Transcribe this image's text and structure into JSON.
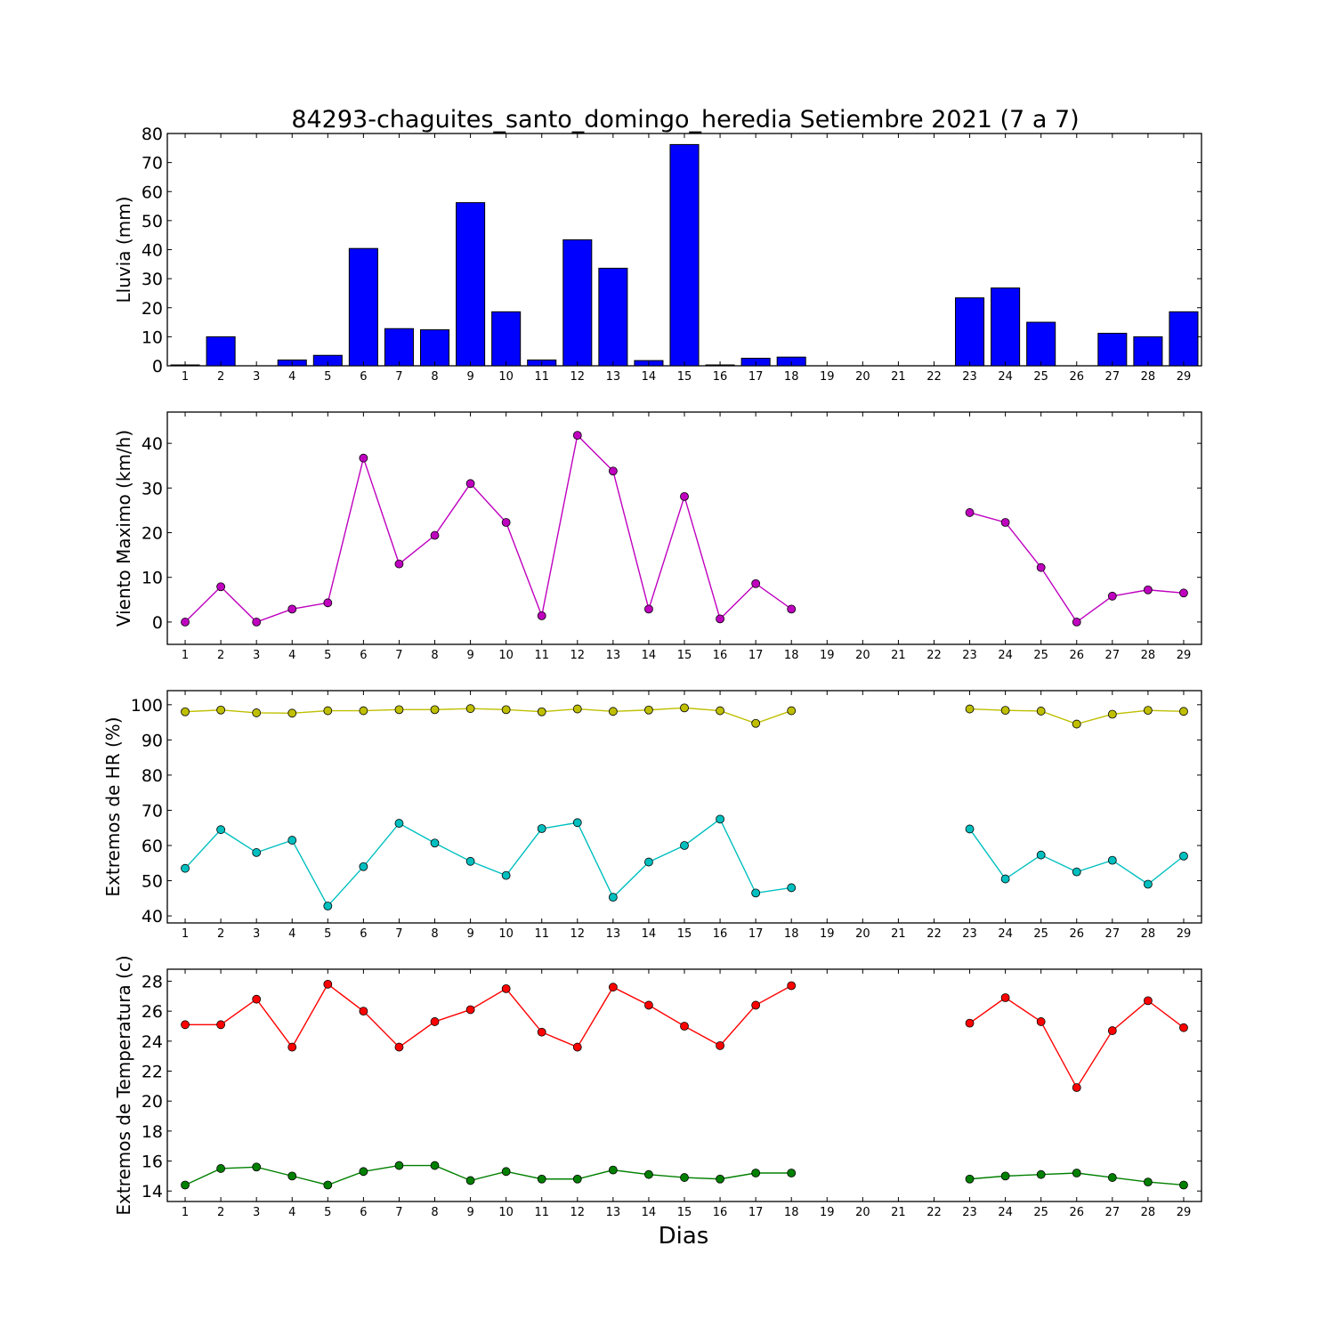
{
  "figure": {
    "title": "84293-chaguites_santo_domingo_heredia Setiembre 2021  (7 a 7)",
    "xlabel": "Dias"
  },
  "chart_data": [
    {
      "type": "bar",
      "ylabel": "Lluvia (mm)",
      "ylim": [
        0,
        80
      ],
      "yticks": [
        0,
        10,
        20,
        30,
        40,
        50,
        60,
        70,
        80
      ],
      "xlim": [
        0.5,
        29.5
      ],
      "x": [
        1,
        2,
        3,
        4,
        5,
        6,
        7,
        8,
        9,
        10,
        11,
        12,
        13,
        14,
        15,
        16,
        17,
        18,
        19,
        20,
        21,
        22,
        23,
        24,
        25,
        26,
        27,
        28,
        29
      ],
      "values": [
        0.3,
        10.0,
        0.0,
        2.0,
        3.6,
        40.4,
        12.8,
        12.4,
        56.2,
        18.6,
        2.0,
        43.4,
        33.6,
        1.8,
        76.2,
        0.3,
        2.6,
        3.0,
        0,
        0,
        0,
        0,
        23.4,
        26.8,
        15.0,
        0.0,
        11.2,
        10.0,
        18.6
      ],
      "color": "#0000ff",
      "grid": false
    },
    {
      "type": "line",
      "ylabel": "Viento Maximo (km/h)",
      "ylim": [
        -5,
        47
      ],
      "yticks": [
        0,
        10,
        20,
        30,
        40
      ],
      "xlim": [
        0.5,
        29.5
      ],
      "x": [
        1,
        2,
        3,
        4,
        5,
        6,
        7,
        8,
        9,
        10,
        11,
        12,
        13,
        14,
        15,
        16,
        17,
        18,
        19,
        20,
        21,
        22,
        23,
        24,
        25,
        26,
        27,
        28,
        29
      ],
      "series": [
        {
          "color": "#bf00bf",
          "values": [
            0.0,
            7.9,
            0.0,
            2.9,
            4.3,
            36.7,
            13.0,
            19.4,
            31.0,
            22.3,
            1.4,
            41.8,
            33.8,
            2.9,
            28.1,
            0.7,
            8.6,
            2.9,
            null,
            null,
            null,
            null,
            24.5,
            22.3,
            12.2,
            0.0,
            5.8,
            7.2,
            6.5
          ]
        }
      ],
      "grid": false
    },
    {
      "type": "line",
      "ylabel": "Extremos de HR (%)",
      "ylim": [
        38,
        104
      ],
      "yticks": [
        40,
        50,
        60,
        70,
        80,
        90,
        100
      ],
      "xlim": [
        0.5,
        29.5
      ],
      "x": [
        1,
        2,
        3,
        4,
        5,
        6,
        7,
        8,
        9,
        10,
        11,
        12,
        13,
        14,
        15,
        16,
        17,
        18,
        19,
        20,
        21,
        22,
        23,
        24,
        25,
        26,
        27,
        28,
        29
      ],
      "series": [
        {
          "color": "#bfbf00",
          "values": [
            98.0,
            98.5,
            97.7,
            97.6,
            98.3,
            98.3,
            98.6,
            98.6,
            98.9,
            98.6,
            98.0,
            98.8,
            98.1,
            98.5,
            99.1,
            98.3,
            94.7,
            98.3,
            null,
            null,
            null,
            null,
            98.8,
            98.4,
            98.2,
            94.5,
            97.3,
            98.4,
            98.1
          ]
        },
        {
          "color": "#00bfbf",
          "values": [
            53.5,
            64.5,
            58.0,
            61.5,
            42.8,
            54.0,
            66.3,
            60.7,
            55.5,
            51.5,
            64.8,
            66.5,
            45.3,
            55.3,
            60.0,
            67.5,
            46.5,
            48.0,
            null,
            null,
            null,
            null,
            64.7,
            50.5,
            57.3,
            52.5,
            55.8,
            49.0,
            57.0
          ]
        }
      ],
      "grid": false
    },
    {
      "type": "line",
      "ylabel": "Extremos de Temperatura (c)",
      "ylim": [
        13.3,
        28.8
      ],
      "yticks": [
        14,
        16,
        18,
        20,
        22,
        24,
        26,
        28
      ],
      "xlim": [
        0.5,
        29.5
      ],
      "x": [
        1,
        2,
        3,
        4,
        5,
        6,
        7,
        8,
        9,
        10,
        11,
        12,
        13,
        14,
        15,
        16,
        17,
        18,
        19,
        20,
        21,
        22,
        23,
        24,
        25,
        26,
        27,
        28,
        29
      ],
      "series": [
        {
          "color": "#ff0000",
          "values": [
            25.1,
            25.1,
            26.8,
            23.6,
            27.8,
            26.0,
            23.6,
            25.3,
            26.1,
            27.5,
            24.6,
            23.6,
            27.6,
            26.4,
            25.0,
            23.7,
            26.4,
            27.7,
            null,
            null,
            null,
            null,
            25.2,
            26.9,
            25.3,
            20.9,
            24.7,
            26.7,
            24.9
          ]
        },
        {
          "color": "#008000",
          "values": [
            14.4,
            15.5,
            15.6,
            15.0,
            14.4,
            15.3,
            15.7,
            15.7,
            14.7,
            15.3,
            14.8,
            14.8,
            15.4,
            15.1,
            14.9,
            14.8,
            15.2,
            15.2,
            null,
            null,
            null,
            null,
            14.8,
            15.0,
            15.1,
            15.2,
            14.9,
            14.6,
            14.4
          ]
        }
      ],
      "grid": false
    }
  ]
}
